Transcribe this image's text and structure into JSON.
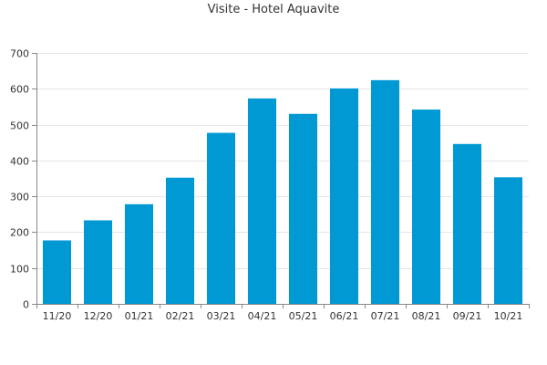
{
  "chart_data": {
    "type": "bar",
    "title": "Visite - Hotel Aquavite",
    "xlabel": "",
    "ylabel": "",
    "categories": [
      "11/20",
      "12/20",
      "01/21",
      "02/21",
      "03/21",
      "04/21",
      "05/21",
      "06/21",
      "07/21",
      "08/21",
      "09/21",
      "10/21"
    ],
    "values": [
      177,
      233,
      278,
      352,
      477,
      573,
      530,
      601,
      624,
      542,
      446,
      353
    ],
    "ylim": [
      0,
      700
    ],
    "yticks": [
      0,
      100,
      200,
      300,
      400,
      500,
      600,
      700
    ],
    "grid": true,
    "legend": "none",
    "colors": {
      "bar": "#0099d4",
      "grid": "#e6e6e6",
      "axis": "#888888",
      "text": "#333333"
    }
  }
}
